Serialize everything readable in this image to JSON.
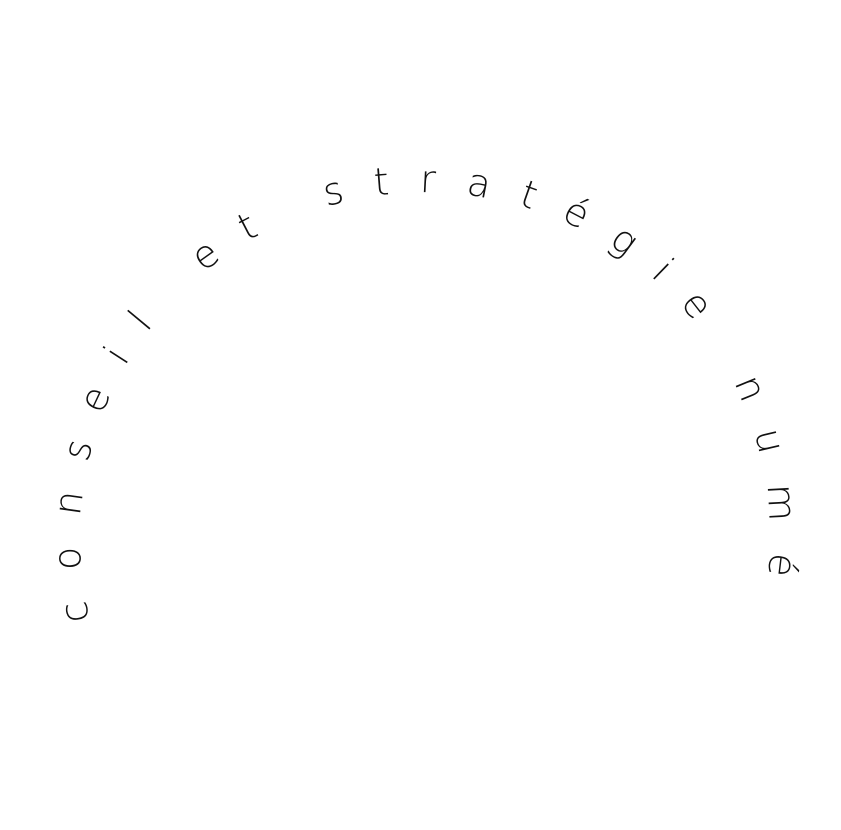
{
  "text": "conseil et stratégie numérique",
  "colors": {
    "background": "#ffffff",
    "text": "#111111"
  }
}
